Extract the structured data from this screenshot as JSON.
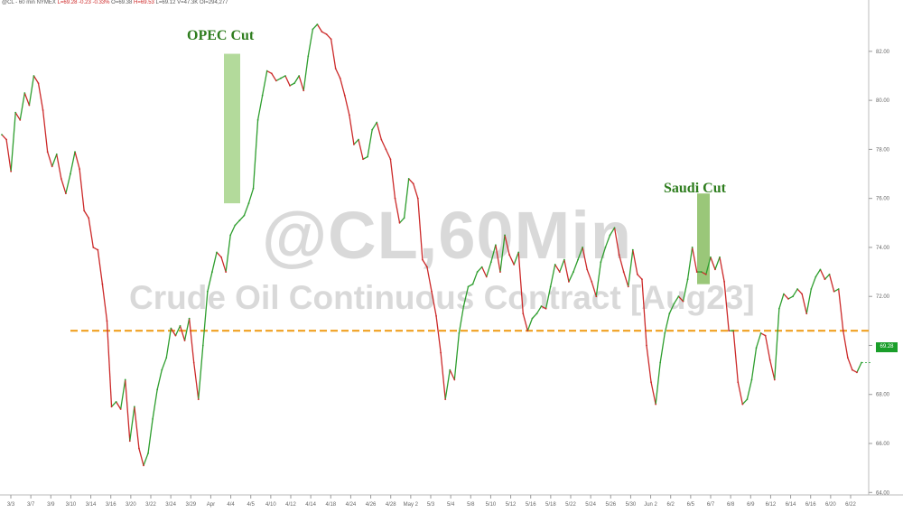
{
  "header": {
    "symbol": "@CL - 60 min",
    "exchange": "NYMEX",
    "last": "L=69.28",
    "change": "-0.23",
    "change_pct": "-0.33%",
    "open": "O=69.38",
    "high": "H=69.53",
    "low": "L=69.12",
    "volume": "V=47.3K",
    "oi": "OI=294,277"
  },
  "watermark": {
    "ticker": "@CL,60Min",
    "title": "Crude Oil Continuous Contract [Aug23]"
  },
  "annotations": {
    "opec": "OPEC Cut",
    "saudi": "Saudi Cut"
  },
  "last_price_label": "69.28",
  "colors": {
    "up": "#2e9e2e",
    "down": "#cc2a2a",
    "shade": "#9acd7a",
    "hline": "#f0a020",
    "axis_text": "#666666",
    "price_tag": "#1a9e2a"
  },
  "chart_data": {
    "type": "line",
    "title": "",
    "xlabel": "",
    "ylabel": "",
    "ylim": [
      63.9,
      83.8
    ],
    "reference_line": 70.6,
    "y_ticks": [
      64,
      66,
      68,
      70,
      72,
      74,
      76,
      78,
      80,
      82
    ],
    "x_ticks": [
      "3/3",
      "3/7",
      "3/9",
      "3/10",
      "3/14",
      "3/16",
      "3/20",
      "3/22",
      "3/24",
      "3/29",
      "Apr",
      "4/4",
      "4/5",
      "4/10",
      "4/12",
      "4/14",
      "4/18",
      "4/24",
      "4/26",
      "4/28",
      "May 2",
      "5/3",
      "5/4",
      "5/8",
      "5/10",
      "5/12",
      "5/16",
      "5/18",
      "5/22",
      "5/24",
      "5/26",
      "5/30",
      "Jun 2",
      "6/2",
      "6/5",
      "6/7",
      "6/8",
      "6/9",
      "6/12",
      "6/14",
      "6/16",
      "6/20",
      "6/22"
    ],
    "shaded_regions": [
      {
        "label": "OPEC Cut",
        "x_start": "3/31",
        "x_end": "Apr 3",
        "y_low": 75.8,
        "y_high": 81.9
      },
      {
        "label": "Saudi Cut",
        "x_start": "6/2",
        "x_end": "6/5",
        "y_low": 72.5,
        "y_high": 76.2
      }
    ],
    "series": [
      {
        "values": [
          78.6,
          78.4,
          77.1,
          79.5,
          79.2,
          80.3,
          79.8,
          81.0,
          80.7,
          79.6,
          77.9,
          77.3,
          77.8,
          76.8,
          76.2,
          77.0,
          77.9,
          77.2,
          75.5,
          75.2,
          74.0,
          73.9,
          72.5,
          71.0,
          67.5,
          67.7,
          67.4,
          68.6,
          66.1,
          67.5,
          65.8,
          65.1,
          65.6,
          67.0,
          68.2,
          69.0,
          69.5,
          70.7,
          70.4,
          70.8,
          70.2,
          71.1,
          69.3,
          67.8,
          70.0,
          72.2,
          73.0,
          73.8,
          73.6,
          73.0,
          74.5,
          74.9,
          75.1,
          75.3,
          75.8,
          76.4,
          79.2,
          80.2,
          81.2,
          81.1,
          80.8,
          80.9,
          81.0,
          80.6,
          80.7,
          81.0,
          80.4,
          81.8,
          82.9,
          83.1,
          82.8,
          82.7,
          82.5,
          81.3,
          80.9,
          80.2,
          79.4,
          78.2,
          78.4,
          77.6,
          77.7,
          78.8,
          79.1,
          78.4,
          78.0,
          77.6,
          76.0,
          75.0,
          75.2,
          76.8,
          76.6,
          76.0,
          73.5,
          73.2,
          72.2,
          71.2,
          69.7,
          67.8,
          69.0,
          68.6,
          70.5,
          71.6,
          72.4,
          72.5,
          73.0,
          73.2,
          72.8,
          73.4,
          74.1,
          73.0,
          74.5,
          73.7,
          73.3,
          73.8,
          71.3,
          70.6,
          71.1,
          71.3,
          71.6,
          71.5,
          72.4,
          73.3,
          73.0,
          73.5,
          72.6,
          73.0,
          73.5,
          74.0,
          73.1,
          72.6,
          72.0,
          73.4,
          74.0,
          74.5,
          74.8,
          73.7,
          73.0,
          72.4,
          73.9,
          72.9,
          72.7,
          70.0,
          68.5,
          67.6,
          69.3,
          70.5,
          71.3,
          71.7,
          72.0,
          71.8,
          72.7,
          74.0,
          73.0,
          73.0,
          72.9,
          73.6,
          73.1,
          73.6,
          72.6,
          70.6,
          70.6,
          68.5,
          67.6,
          67.8,
          68.6,
          69.9,
          70.5,
          70.4,
          69.4,
          68.6,
          71.5,
          72.1,
          71.9,
          72.0,
          72.3,
          72.1,
          71.3,
          72.3,
          72.8,
          73.1,
          72.7,
          72.9,
          72.2,
          72.3,
          70.6,
          69.5,
          69.0,
          68.9,
          69.3
        ]
      }
    ]
  }
}
